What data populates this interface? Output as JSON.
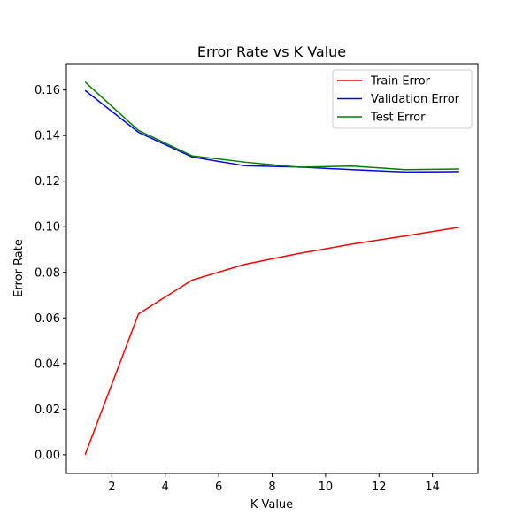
{
  "chart_data": {
    "type": "line",
    "title": "Error Rate vs K Value",
    "xlabel": "K Value",
    "ylabel": "Error Rate",
    "xlim": [
      0.3,
      15.7
    ],
    "ylim": [
      -0.0082,
      0.1715
    ],
    "x": [
      1,
      3,
      5,
      7,
      9,
      11,
      13,
      15
    ],
    "xticks": [
      2,
      4,
      6,
      8,
      10,
      12,
      14
    ],
    "xtick_labels": [
      "2",
      "4",
      "6",
      "8",
      "10",
      "12",
      "14"
    ],
    "yticks": [
      0.0,
      0.02,
      0.04,
      0.06,
      0.08,
      0.1,
      0.12,
      0.14,
      0.16
    ],
    "ytick_labels": [
      "0.00",
      "0.02",
      "0.04",
      "0.06",
      "0.08",
      "0.10",
      "0.12",
      "0.14",
      "0.16"
    ],
    "grid": false,
    "legend_position": "top-right",
    "series": [
      {
        "name": "Train Error",
        "color": "#ff0000",
        "values": [
          0.0,
          0.0618,
          0.0766,
          0.0836,
          0.0883,
          0.0924,
          0.096,
          0.0998
        ]
      },
      {
        "name": "Validation Error",
        "color": "#0000ff",
        "values": [
          0.1598,
          0.1414,
          0.1306,
          0.1267,
          0.1262,
          0.125,
          0.124,
          0.1242
        ]
      },
      {
        "name": "Test Error",
        "color": "#008000",
        "values": [
          0.1635,
          0.1422,
          0.1311,
          0.1283,
          0.1261,
          0.1266,
          0.125,
          0.1253
        ]
      }
    ]
  }
}
